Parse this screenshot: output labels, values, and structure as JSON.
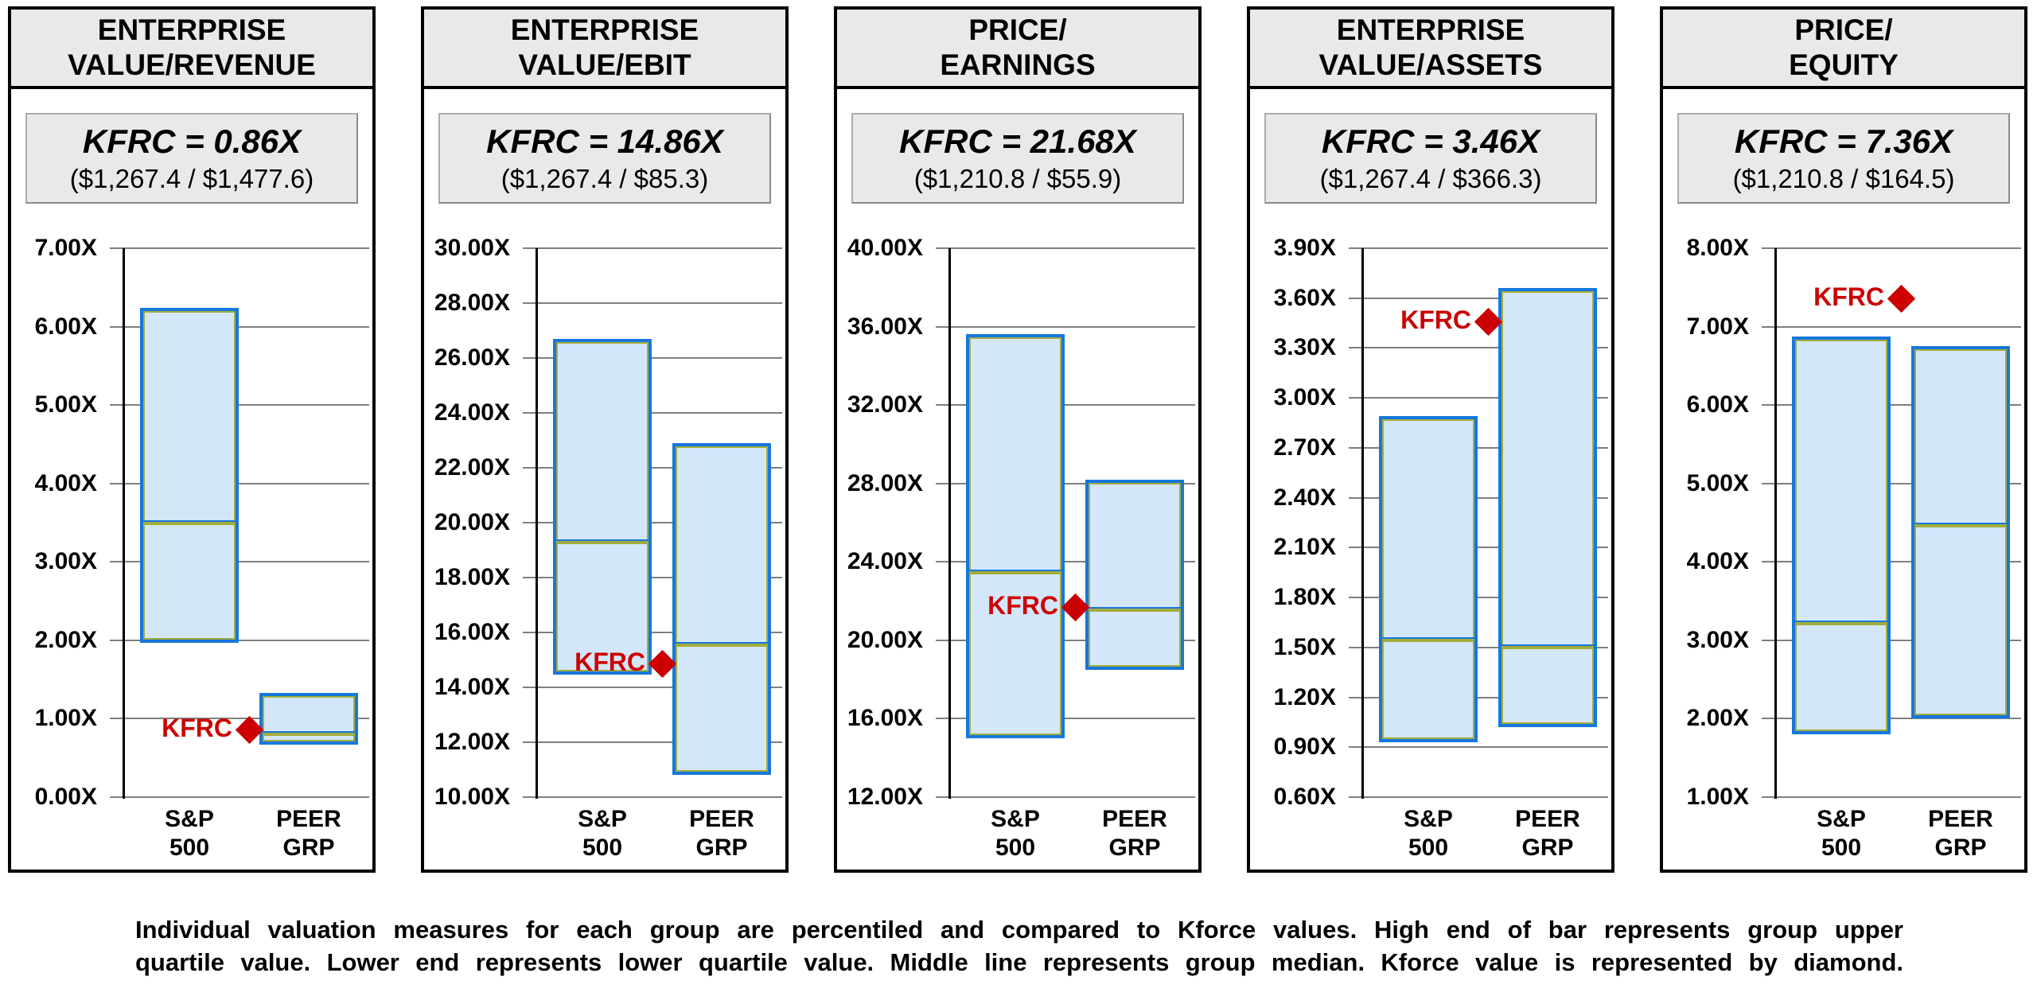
{
  "caption": {
    "line1": "Individual valuation measures for each group are percentiled and compared to Kforce values.  High end of bar represents group upper",
    "line2": "quartile value.  Lower end represents lower quartile value.  Middle line represents group median.  Kforce value is represented by diamond."
  },
  "colors": {
    "box_fill": "#d4e7fa",
    "box_border": "#1677dd",
    "box_inner_line": "#a3ad3c",
    "diamond_red": "#cc0000",
    "header_bg": "#e9e9e9",
    "gridline": "#7f7f7f"
  },
  "marker_legend_label": "KFRC",
  "categories": [
    "S&P\n500",
    "PEER\nGRP"
  ],
  "chart_data": [
    {
      "type": "bar",
      "title_line1": "ENTERPRISE",
      "title_line2": "VALUE/REVENUE",
      "kfrc_label": "KFRC = 0.86X",
      "kfrc_calc": "($1,267.4 / $1,477.6)",
      "kfrc_value": 0.86,
      "ylim": [
        0.0,
        7.0
      ],
      "tick_labels": [
        "7.00X",
        "6.00X",
        "5.00X",
        "4.00X",
        "3.00X",
        "2.00X",
        "1.00X",
        "0.00X"
      ],
      "categories": [
        "S&P 500",
        "PEER GRP"
      ],
      "series": [
        {
          "name": "S&P 500",
          "lower_quartile": 1.97,
          "median": 3.53,
          "upper_quartile": 6.24
        },
        {
          "name": "PEER GRP",
          "lower_quartile": 0.67,
          "median": 0.84,
          "upper_quartile": 1.33
        }
      ]
    },
    {
      "type": "bar",
      "title_line1": "ENTERPRISE",
      "title_line2": "VALUE/EBIT",
      "kfrc_label": "KFRC = 14.86X",
      "kfrc_calc": "($1,267.4 / $85.3)",
      "kfrc_value": 14.86,
      "ylim": [
        10.0,
        30.0
      ],
      "tick_labels": [
        "30.00X",
        "28.00X",
        "26.00X",
        "24.00X",
        "22.00X",
        "20.00X",
        "18.00X",
        "16.00X",
        "14.00X",
        "12.00X",
        "10.00X"
      ],
      "categories": [
        "S&P 500",
        "PEER GRP"
      ],
      "series": [
        {
          "name": "S&P 500",
          "lower_quartile": 14.45,
          "median": 19.4,
          "upper_quartile": 26.7
        },
        {
          "name": "PEER GRP",
          "lower_quartile": 10.8,
          "median": 15.65,
          "upper_quartile": 22.9
        }
      ]
    },
    {
      "type": "bar",
      "title_line1": "PRICE/",
      "title_line2": "EARNINGS",
      "kfrc_label": "KFRC = 21.68X",
      "kfrc_calc": "($1,210.8 / $55.9)",
      "kfrc_value": 21.68,
      "ylim": [
        12.0,
        40.0
      ],
      "tick_labels": [
        "40.00X",
        "36.00X",
        "32.00X",
        "28.00X",
        "24.00X",
        "20.00X",
        "16.00X",
        "12.00X"
      ],
      "categories": [
        "S&P 500",
        "PEER GRP"
      ],
      "series": [
        {
          "name": "S&P 500",
          "lower_quartile": 15.0,
          "median": 23.6,
          "upper_quartile": 35.6
        },
        {
          "name": "PEER GRP",
          "lower_quartile": 18.5,
          "median": 21.7,
          "upper_quartile": 28.2
        }
      ]
    },
    {
      "type": "bar",
      "title_line1": "ENTERPRISE",
      "title_line2": "VALUE/ASSETS",
      "kfrc_label": "KFRC = 3.46X",
      "kfrc_calc": "($1,267.4 / $366.3)",
      "kfrc_value": 3.46,
      "ylim": [
        0.6,
        3.9
      ],
      "tick_labels": [
        "3.90X",
        "3.60X",
        "3.30X",
        "3.00X",
        "2.70X",
        "2.40X",
        "2.10X",
        "1.80X",
        "1.50X",
        "1.20X",
        "0.90X",
        "0.60X"
      ],
      "categories": [
        "S&P 500",
        "PEER GRP"
      ],
      "series": [
        {
          "name": "S&P 500",
          "lower_quartile": 0.93,
          "median": 1.56,
          "upper_quartile": 2.89
        },
        {
          "name": "PEER GRP",
          "lower_quartile": 1.02,
          "median": 1.52,
          "upper_quartile": 3.66
        }
      ]
    },
    {
      "type": "bar",
      "title_line1": "PRICE/",
      "title_line2": "EQUITY",
      "kfrc_label": "KFRC = 7.36X",
      "kfrc_calc": "($1,210.8 / $164.5)",
      "kfrc_value": 7.36,
      "ylim": [
        1.0,
        8.0
      ],
      "tick_labels": [
        "8.00X",
        "7.00X",
        "6.00X",
        "5.00X",
        "4.00X",
        "3.00X",
        "2.00X",
        "1.00X"
      ],
      "categories": [
        "S&P 500",
        "PEER GRP"
      ],
      "series": [
        {
          "name": "S&P 500",
          "lower_quartile": 1.8,
          "median": 3.25,
          "upper_quartile": 6.87
        },
        {
          "name": "PEER GRP",
          "lower_quartile": 2.0,
          "median": 4.5,
          "upper_quartile": 6.75
        }
      ]
    }
  ]
}
